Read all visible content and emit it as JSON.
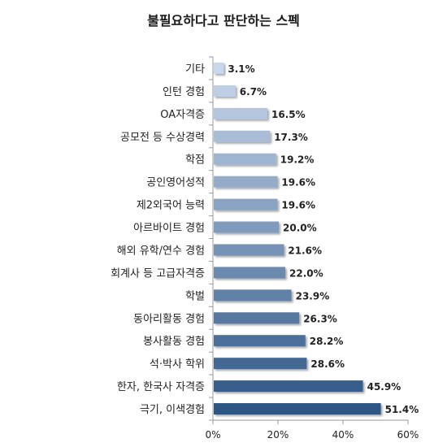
{
  "chart_data": {
    "type": "bar",
    "orientation": "horizontal",
    "title": "불필요하다고 판단하는 스펙",
    "categories": [
      "기타",
      "인턴 경험",
      "OA자격증",
      "공모전 등 수상경력",
      "학점",
      "공인영어성적",
      "제2외국어 능력",
      "아르바이트 경험",
      "해외 유학/연수 경험",
      "회계사 등 고급자격증",
      "학벌",
      "동아리활동 경험",
      "봉사활동 경험",
      "석·박사 학위",
      "한자, 한국사 자격증",
      "극기, 이색경험"
    ],
    "values": [
      3.1,
      6.7,
      16.5,
      17.3,
      19.2,
      19.6,
      19.6,
      20.0,
      21.6,
      22.0,
      23.9,
      26.3,
      28.2,
      28.6,
      45.9,
      51.4
    ],
    "value_labels": [
      "3.1%",
      "6.7%",
      "16.5%",
      "17.3%",
      "19.2%",
      "19.6%",
      "19.6%",
      "20.0%",
      "21.6%",
      "22.0%",
      "23.9%",
      "26.3%",
      "28.2%",
      "28.6%",
      "45.9%",
      "51.4%"
    ],
    "xlim": [
      0,
      60
    ],
    "xticks": [
      0,
      20,
      40,
      60
    ],
    "xtick_labels": [
      "0%",
      "20%",
      "40%",
      "60%"
    ],
    "xlabel": "",
    "ylabel": "",
    "grid": true,
    "colors": {
      "light": "#c7d7ec",
      "dark": "#2f5685"
    }
  }
}
